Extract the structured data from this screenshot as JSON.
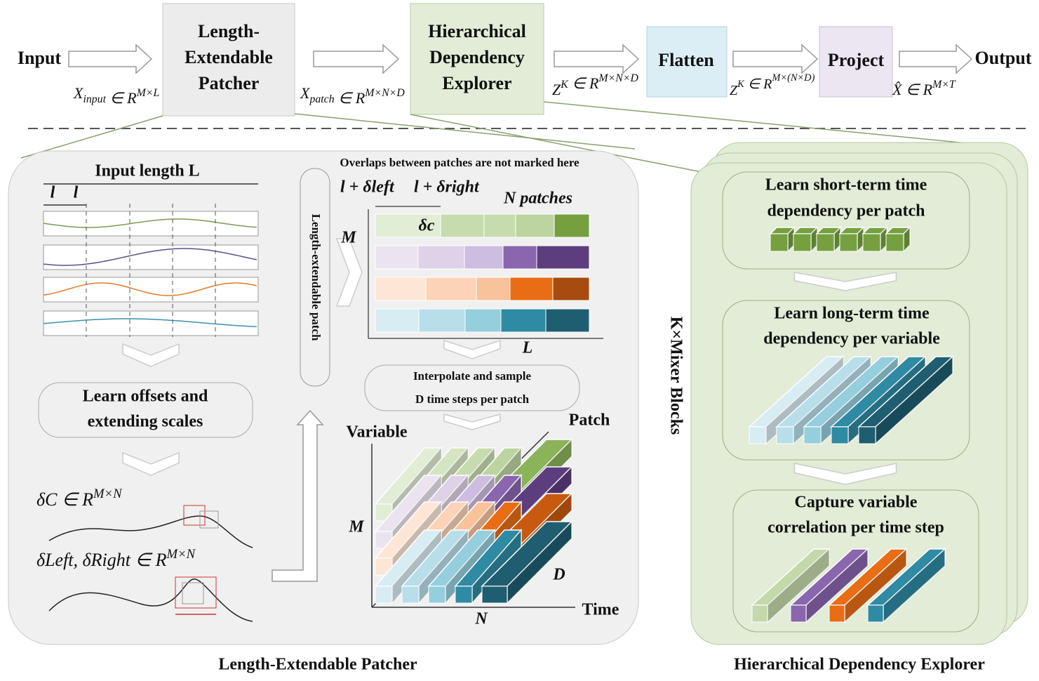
{
  "pipeline": {
    "input": "Input",
    "patcher": [
      "Length-",
      "Extendable",
      "Patcher"
    ],
    "explorer": [
      "Hierarchical",
      "Dependency",
      "Explorer"
    ],
    "flatten": "Flatten",
    "project": "Project",
    "output": "Output",
    "shapes": [
      {
        "base": "X",
        "sub": "input",
        "rel": " ∈ R",
        "sup": "M×L"
      },
      {
        "base": "X",
        "sub": "patch",
        "rel": " ∈ R",
        "sup": "M×N×D"
      },
      {
        "base": "Z",
        "base_sup": "K",
        "rel": " ∈ R",
        "sup": "M×N×D"
      },
      {
        "base": "Z",
        "base_sup": "K",
        "rel": " ∈ R",
        "sup": "M×(N×D)"
      },
      {
        "base": "X̂",
        "rel": " ∈ R",
        "sup": "M×T"
      }
    ]
  },
  "patcher": {
    "input_length": "Input length L",
    "l_marks": [
      "l",
      "l"
    ],
    "offsets_box": [
      "Learn offsets and",
      "extending scales"
    ],
    "delta_c": {
      "base": "δC",
      "rel": " ∈ R",
      "sup": "M×N"
    },
    "delta_lr": {
      "base": "δLeft, δRight",
      "rel": " ∈ R",
      "sup": "M×N"
    },
    "overlap_note": "Overlaps between patches are not marked here",
    "vertical_box": "Length-extendable patch",
    "l_left": "l + δleft",
    "l_right": "l + δright",
    "n_patches": "N patches",
    "grid_m": "M",
    "delta_c_cell": "δc",
    "grid_l": "L",
    "interp_box": [
      "Interpolate and sample",
      "D time steps per patch"
    ],
    "cube_variable": "Variable",
    "cube_patch": "Patch",
    "cube_m": "M",
    "cube_d": "D",
    "cube_time": "Time",
    "cube_n": "N",
    "footer": "Length-Extendable Patcher"
  },
  "explorer": {
    "stage1": [
      "Learn short-term time",
      "dependency per patch"
    ],
    "stage2": [
      "Learn long-term time",
      "dependency per variable"
    ],
    "stage3": [
      "Capture variable",
      "correlation per time step"
    ],
    "blocks": "K×Mixer Blocks",
    "footer": "Hierarchical Dependency Explorer"
  }
}
